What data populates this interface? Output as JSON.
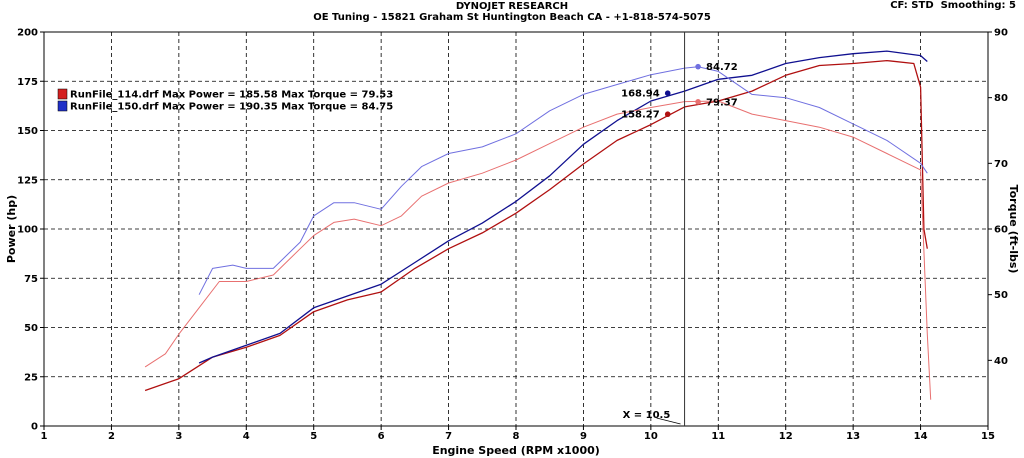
{
  "header": {
    "title": "DYNOJET RESEARCH",
    "subtitle": "OE Tuning - 15821 Graham St Huntington Beach CA - +1-818-574-5075",
    "cf": "CF: STD",
    "smoothing": "Smoothing: 5"
  },
  "chart_data": {
    "type": "line",
    "xlabel": "Engine Speed (RPM x1000)",
    "ylabel": "Power (hp)",
    "y2label": "Torque (ft-lbs)",
    "xlim": [
      1,
      15
    ],
    "ylim": [
      0,
      200
    ],
    "y2lim": [
      30,
      90
    ],
    "x_ticks": [
      1,
      2,
      3,
      4,
      5,
      6,
      7,
      8,
      9,
      10,
      11,
      12,
      13,
      14,
      15
    ],
    "y_ticks": [
      0,
      25,
      50,
      75,
      100,
      125,
      150,
      175,
      200
    ],
    "y2_ticks": [
      40,
      50,
      60,
      70,
      80,
      90
    ],
    "grid": true,
    "cursor": {
      "x": 10.5,
      "label": "X = 10.5"
    },
    "legend": [
      {
        "text": "RunFile_114.drf Max Power = 185.58 Max Torque = 79.53",
        "color": "#d42020"
      },
      {
        "text": "RunFile_150.drf Max Power = 190.35 Max Torque = 84.75",
        "color": "#2030c8"
      }
    ],
    "series": [
      {
        "name": "RunFile_114.drf Power",
        "axis": "left",
        "color": "#b01010",
        "x": [
          2.5,
          3.0,
          3.5,
          4.0,
          4.5,
          5.0,
          5.5,
          6.0,
          6.5,
          7.0,
          7.5,
          8.0,
          8.5,
          9.0,
          9.5,
          10.0,
          10.5,
          11.0,
          11.5,
          12.0,
          12.5,
          13.0,
          13.5,
          13.9,
          14.0,
          14.05,
          14.1
        ],
        "y": [
          18,
          24,
          35,
          40,
          46,
          58,
          64,
          68,
          80,
          90,
          98,
          108,
          120,
          133,
          145,
          153,
          162,
          165,
          170,
          178,
          183,
          184,
          185.5,
          184,
          172,
          100,
          90
        ]
      },
      {
        "name": "RunFile_150.drf Power",
        "axis": "left",
        "color": "#101090",
        "x": [
          3.3,
          3.5,
          4.0,
          4.5,
          5.0,
          5.5,
          6.0,
          6.5,
          7.0,
          7.5,
          8.0,
          8.5,
          9.0,
          9.5,
          10.0,
          10.5,
          11.0,
          11.5,
          12.0,
          12.5,
          13.0,
          13.5,
          14.0,
          14.1
        ],
        "y": [
          32,
          35,
          41,
          47,
          60,
          66,
          72,
          83,
          94,
          103,
          114,
          127,
          143,
          155,
          165,
          170,
          176,
          178,
          184,
          187,
          189,
          190.3,
          188,
          185
        ]
      },
      {
        "name": "RunFile_114.drf Torque",
        "axis": "right",
        "color": "#e87070",
        "x": [
          2.5,
          2.8,
          3.0,
          3.3,
          3.6,
          4.0,
          4.4,
          4.8,
          5.0,
          5.3,
          5.6,
          6.0,
          6.3,
          6.6,
          7.0,
          7.5,
          8.0,
          8.5,
          9.0,
          9.5,
          10.0,
          10.5,
          11.0,
          11.5,
          12.0,
          12.5,
          13.0,
          13.5,
          14.0,
          14.1,
          14.15
        ],
        "y": [
          39,
          41,
          44,
          48,
          52,
          52,
          53,
          57,
          59,
          61,
          61.5,
          60.5,
          62,
          65,
          67,
          68.5,
          70.5,
          73,
          75.5,
          77.5,
          78.5,
          79.4,
          79.5,
          77.5,
          76.5,
          75.5,
          74,
          71.5,
          69,
          44,
          34
        ]
      },
      {
        "name": "RunFile_150.drf Torque",
        "axis": "right",
        "color": "#7070e0",
        "x": [
          3.3,
          3.5,
          3.8,
          4.0,
          4.4,
          4.8,
          5.0,
          5.3,
          5.6,
          6.0,
          6.3,
          6.6,
          7.0,
          7.5,
          8.0,
          8.5,
          9.0,
          9.5,
          10.0,
          10.5,
          10.7,
          11.0,
          11.5,
          12.0,
          12.5,
          13.0,
          13.5,
          14.0,
          14.1
        ],
        "y": [
          50,
          54,
          54.5,
          54,
          54,
          58,
          62,
          64,
          64,
          63,
          66.5,
          69.5,
          71.5,
          72.5,
          74.5,
          78,
          80.5,
          82,
          83.5,
          84.5,
          84.7,
          84,
          80.5,
          80,
          78.5,
          76,
          73.5,
          70,
          68.5
        ]
      }
    ],
    "markers": [
      {
        "x": 10.25,
        "y": 168.94,
        "axis": "left",
        "label": "168.94",
        "color": "#101090",
        "side": "left"
      },
      {
        "x": 10.25,
        "y": 158.27,
        "axis": "left",
        "label": "158.27",
        "color": "#b01010",
        "side": "left"
      },
      {
        "x": 10.7,
        "y": 84.72,
        "axis": "right",
        "label": "84.72",
        "color": "#7070e0",
        "side": "right"
      },
      {
        "x": 10.7,
        "y": 79.37,
        "axis": "right",
        "label": "79.37",
        "color": "#e87070",
        "side": "right"
      }
    ]
  }
}
